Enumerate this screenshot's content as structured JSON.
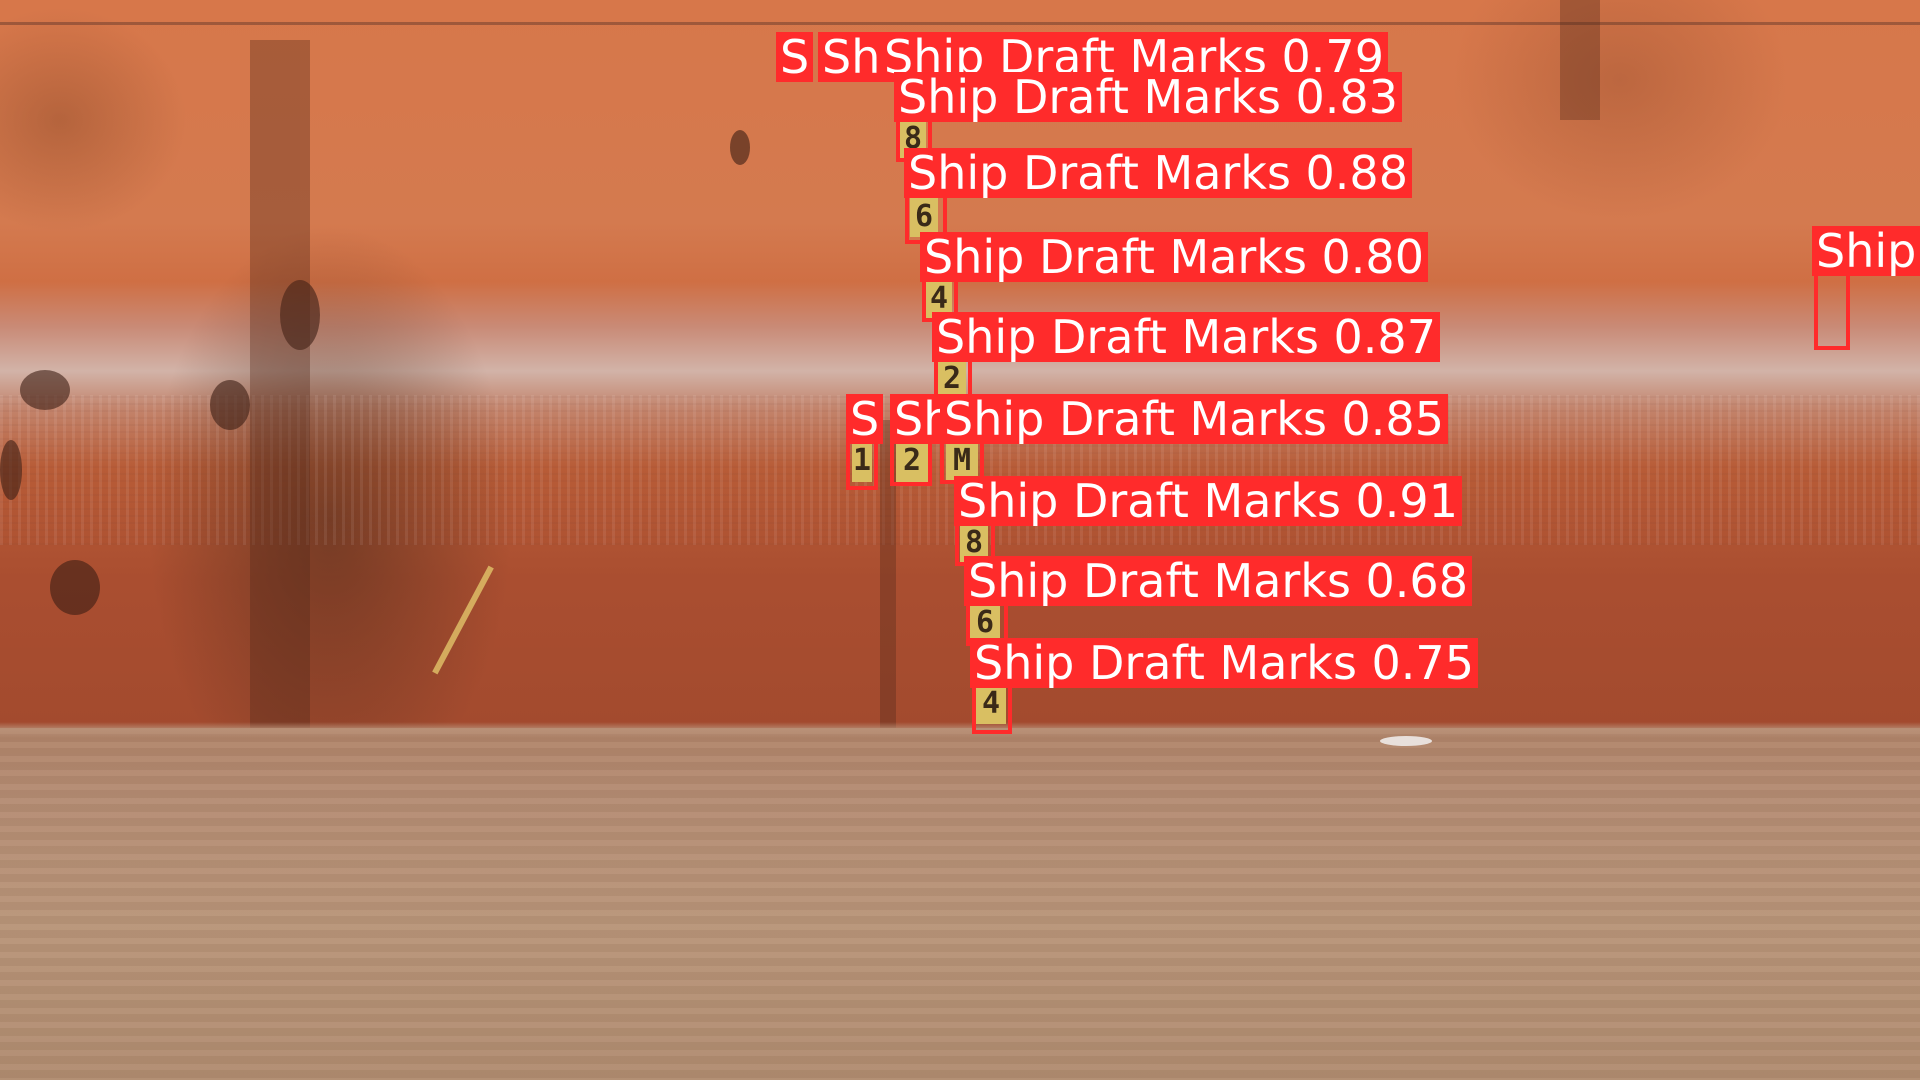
{
  "detections": [
    {
      "label": "Ship Draft Marks 0.79",
      "digit": ""
    },
    {
      "label": "Ship Draft Marks 0.83",
      "digit": "8"
    },
    {
      "label": "Ship Draft Marks 0.88",
      "digit": "6"
    },
    {
      "label": "Ship Draft Marks 0.80",
      "digit": "4"
    },
    {
      "label": "Ship Draft Marks 0.87",
      "digit": "2"
    },
    {
      "label": "Ship Draft Marks 0.85",
      "digit": "M"
    },
    {
      "label": "Ship Draft Marks 0.91",
      "digit": "8"
    },
    {
      "label": "Ship Draft Marks 0.68",
      "digit": "6"
    },
    {
      "label": "Ship Draft Marks 0.75",
      "digit": "4"
    }
  ],
  "truncated_labels": [
    {
      "text": "S"
    },
    {
      "text": "Sh"
    },
    {
      "text": "S"
    },
    {
      "text": "Sh"
    },
    {
      "text": "Ship"
    }
  ],
  "digits_extra": [
    "1",
    "2"
  ],
  "colors": {
    "box": "#ff2b2b",
    "label_text": "#ffffff",
    "mark": "#d9bf62"
  }
}
